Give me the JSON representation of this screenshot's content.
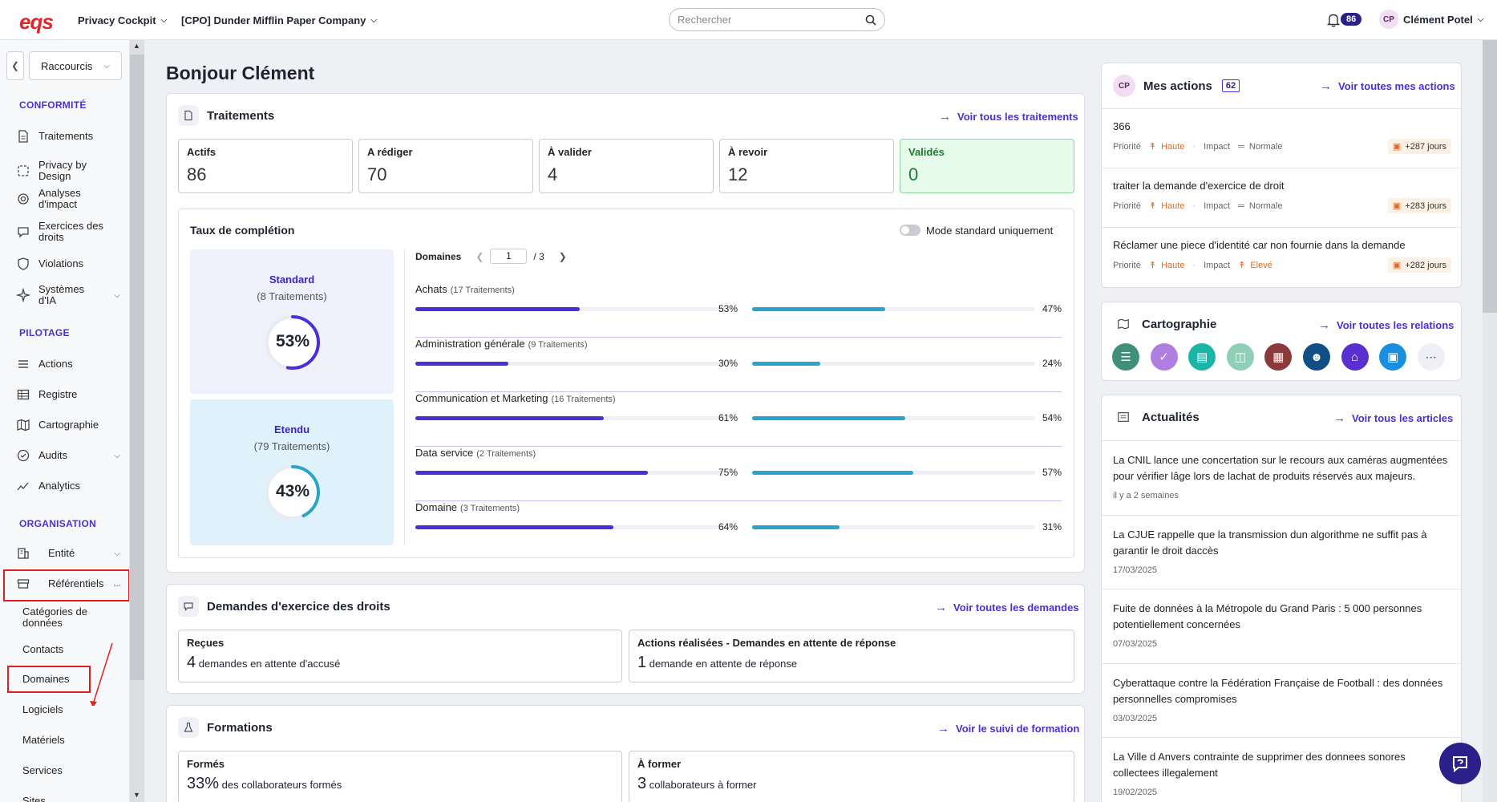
{
  "header": {
    "logo": "eqs",
    "product_menu": "Privacy Cockpit",
    "company_menu": "[CPO] Dunder Mifflin Paper Company",
    "search_placeholder": "Rechercher",
    "notification_count": "86",
    "user_initials": "CP",
    "user_name": "Clément Potel"
  },
  "sidebar": {
    "shortcuts": "Raccourcis",
    "sections": {
      "conformite": "CONFORMITÉ",
      "pilotage": "PILOTAGE",
      "organisation": "ORGANISATION"
    },
    "items": {
      "traitements": "Traitements",
      "privacy_by_design": "Privacy by Design",
      "analyses_1": "Analyses",
      "analyses_2": "d'impact",
      "exercices_1": "Exercices des",
      "exercices_2": "droits",
      "violations": "Violations",
      "systemes_1": "Systèmes",
      "systemes_2": "d'IA",
      "actions": "Actions",
      "registre": "Registre",
      "cartographie": "Cartographie",
      "audits": "Audits",
      "analytics": "Analytics",
      "entite": "Entité",
      "referentiels": "Référentiels"
    },
    "subitems": {
      "categories_1": "Catégories de",
      "categories_2": "données",
      "contacts": "Contacts",
      "domaines": "Domaines",
      "logiciels": "Logiciels",
      "materiels": "Matériels",
      "services": "Services",
      "sites": "Sites"
    }
  },
  "greeting": "Bonjour Clément",
  "traitements": {
    "title": "Traitements",
    "link": "Voir tous les traitements",
    "stats": [
      {
        "label": "Actifs",
        "value": "86"
      },
      {
        "label": "A rédiger",
        "value": "70"
      },
      {
        "label": "À valider",
        "value": "4"
      },
      {
        "label": "À revoir",
        "value": "12"
      },
      {
        "label": "Validés",
        "value": "0"
      }
    ],
    "completion": {
      "title": "Taux de complétion",
      "toggle_label": "Mode standard uniquement",
      "standard": {
        "title": "Standard",
        "subtitle": "(8 Traitements)",
        "pct_label": "53%",
        "pct": 53
      },
      "etendu": {
        "title": "Etendu",
        "subtitle": "(79 Traitements)",
        "pct_label": "43%",
        "pct": 43
      },
      "domains_label": "Domaines",
      "page": "1",
      "page_total": "/ 3",
      "domains": [
        {
          "name": "Achats",
          "count": "(17 Traitements)",
          "std": 53,
          "std_label": "53%",
          "ext": 47,
          "ext_label": "47%"
        },
        {
          "name": "Administration générale",
          "count": "(9 Traitements)",
          "std": 30,
          "std_label": "30%",
          "ext": 24,
          "ext_label": "24%"
        },
        {
          "name": "Communication et Marketing",
          "count": "(16 Traitements)",
          "std": 61,
          "std_label": "61%",
          "ext": 54,
          "ext_label": "54%"
        },
        {
          "name": "Data service",
          "count": "(2 Traitements)",
          "std": 75,
          "std_label": "75%",
          "ext": 57,
          "ext_label": "57%"
        },
        {
          "name": "Domaine",
          "count": "(3 Traitements)",
          "std": 64,
          "std_label": "64%",
          "ext": 31,
          "ext_label": "31%"
        }
      ]
    }
  },
  "demandes": {
    "title": "Demandes d'exercice des droits",
    "link": "Voir toutes les demandes",
    "recues": {
      "title": "Reçues",
      "value": "4",
      "text": "demandes en attente d'accusé"
    },
    "actions": {
      "title": "Actions réalisées - Demandes en attente de réponse",
      "value": "1",
      "text": "demande en attente de réponse"
    }
  },
  "formations": {
    "title": "Formations",
    "link": "Voir le suivi de formation",
    "formes": {
      "title": "Formés",
      "value": "33%",
      "text": "des collaborateurs formés"
    },
    "a_former": {
      "title": "À former",
      "value": "3",
      "text": "collaborateurs à former"
    }
  },
  "mes_actions": {
    "initials": "CP",
    "title": "Mes actions",
    "count": "62",
    "link": "Voir toutes mes actions",
    "priority_label": "Priorité",
    "impact_label": "Impact",
    "items": [
      {
        "title": "366",
        "priority": "Haute",
        "impact": "Normale",
        "days": "+287 jours"
      },
      {
        "title": "traiter la demande d'exercice de droit",
        "priority": "Haute",
        "impact": "Normale",
        "days": "+283 jours"
      },
      {
        "title": "Réclamer une piece d'identité car non fournie dans la demande",
        "priority": "Haute",
        "impact": "Elevé",
        "days": "+282 jours"
      }
    ]
  },
  "cartographie": {
    "title": "Cartographie",
    "link": "Voir toutes les relations",
    "icons": [
      {
        "name": "list-icon",
        "color": "#3f8f7a"
      },
      {
        "name": "shield-check-icon",
        "color": "#b07ee0"
      },
      {
        "name": "document-icon",
        "color": "#1bb5a8"
      },
      {
        "name": "database-icon",
        "color": "#8fcfb8"
      },
      {
        "name": "certificate-icon",
        "color": "#8a3a3a"
      },
      {
        "name": "people-icon",
        "color": "#0f4f86"
      },
      {
        "name": "building-icon",
        "color": "#5a2fd0"
      },
      {
        "name": "window-icon",
        "color": "#1a8fe0"
      }
    ]
  },
  "actualites": {
    "title": "Actualités",
    "link": "Voir tous les articles",
    "items": [
      {
        "title": "La CNIL lance une concertation sur le recours aux caméras augmentées pour vérifier lâge lors de lachat de produits réservés aux majeurs.",
        "date": "il y a 2 semaines"
      },
      {
        "title": "La CJUE rappelle que la transmission dun algorithme ne suffit pas à garantir le droit daccès",
        "date": "17/03/2025"
      },
      {
        "title": "Fuite de données à la Métropole du Grand Paris : 5 000 personnes potentiellement concernées",
        "date": "07/03/2025"
      },
      {
        "title": "Cyberattaque contre la Fédération Française de Football : des données personnelles compromises",
        "date": "03/03/2025"
      },
      {
        "title": "La Ville d Anvers contrainte de supprimer des donnees sonores collectees illegalement",
        "date": "19/02/2025"
      }
    ]
  },
  "colors": {
    "accent": "#4a2fd8",
    "standard_bar": "#4a2fd8",
    "extended_bar": "#2aa4c8"
  }
}
